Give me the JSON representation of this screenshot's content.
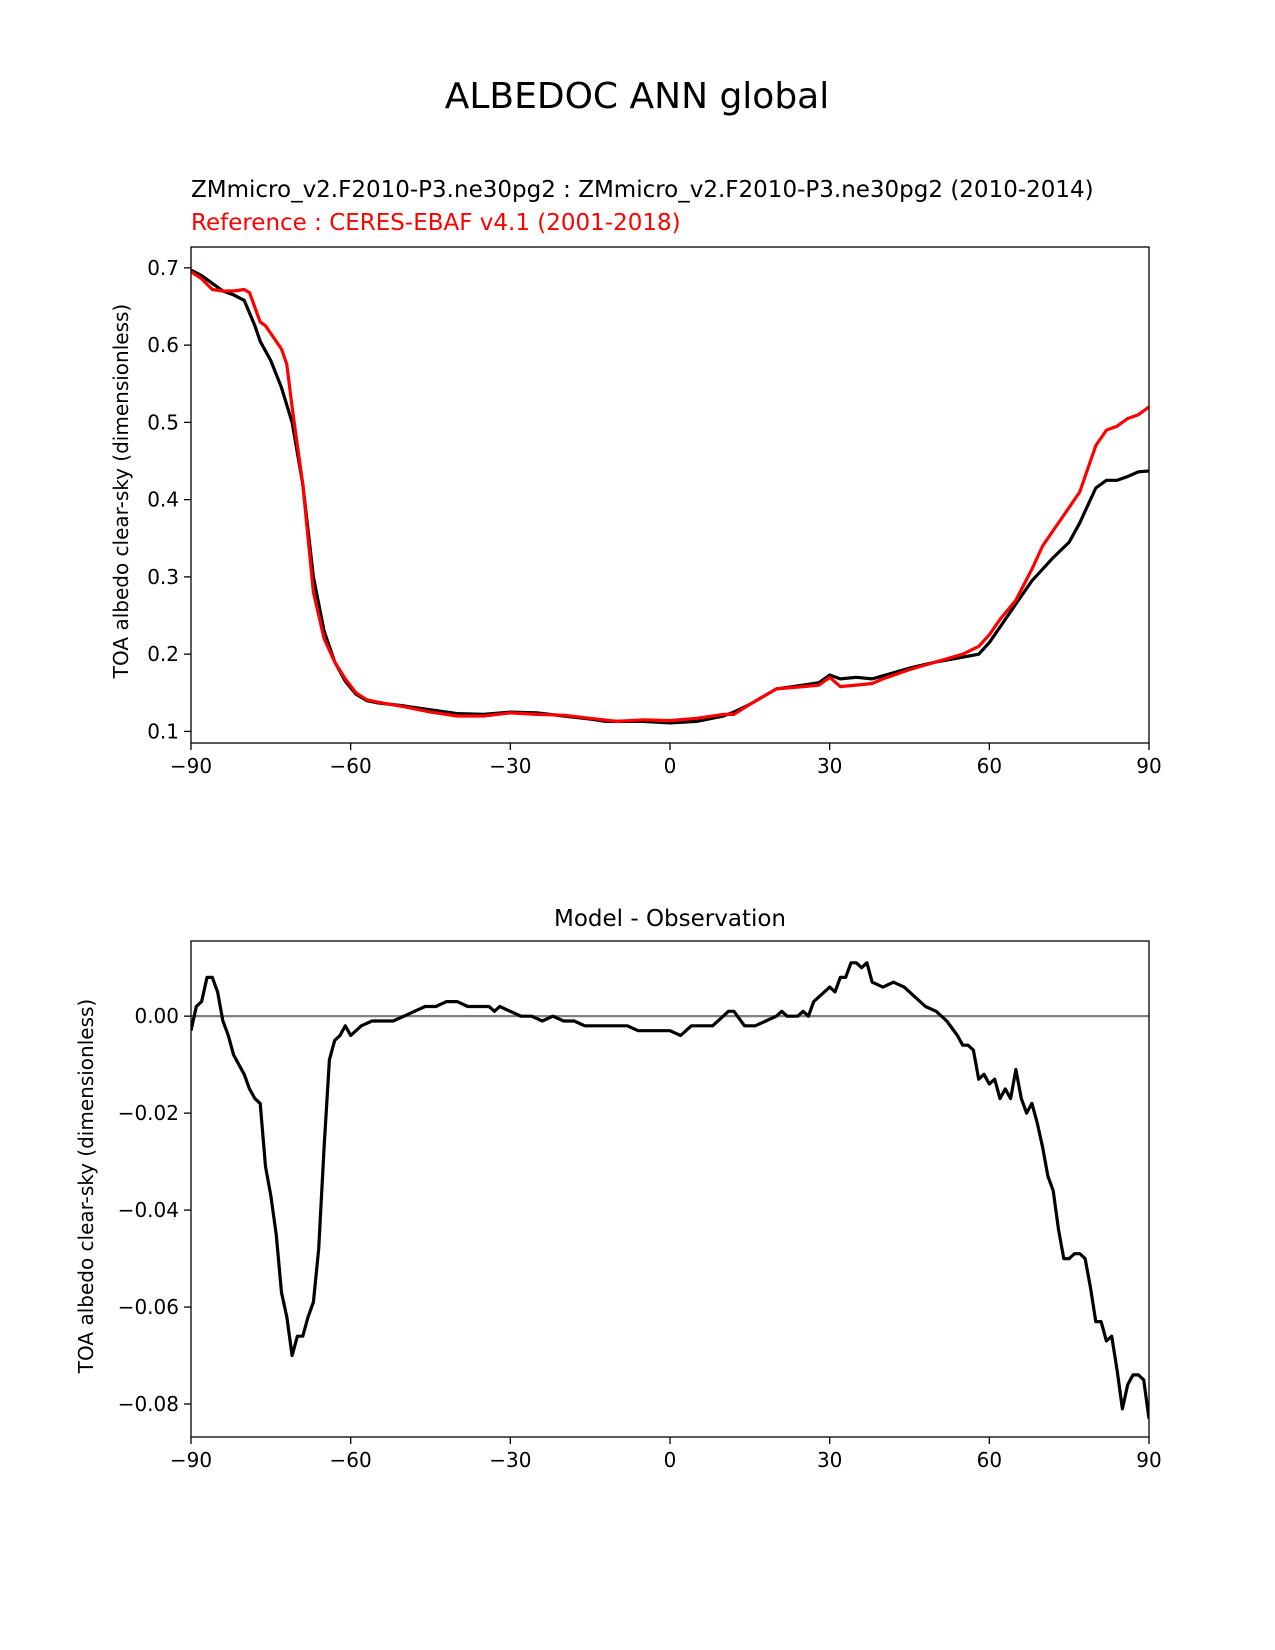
{
  "figure": {
    "title": "ALBEDOC ANN global"
  },
  "chart_data": [
    {
      "type": "line",
      "title": "ZMmicro_v2.F2010-P3.ne30pg2 : ZMmicro_v2.F2010-P3.ne30pg2 (2010-2014)",
      "subtitle": "Reference : CERES-EBAF v4.1 (2001-2018)",
      "subtitle_color": "#ff0000",
      "xlabel": "",
      "ylabel": "TOA albedo clear-sky (dimensionless)",
      "xlim": [
        -90,
        90
      ],
      "ylim": [
        0.085,
        0.727
      ],
      "xticks": [
        -90,
        -60,
        -30,
        0,
        30,
        60,
        90
      ],
      "xtick_labels": [
        "−90",
        "−60",
        "−30",
        "0",
        "30",
        "60",
        "90"
      ],
      "yticks": [
        0.1,
        0.2,
        0.3,
        0.4,
        0.5,
        0.6,
        0.7
      ],
      "ytick_labels": [
        "0.1",
        "0.2",
        "0.3",
        "0.4",
        "0.5",
        "0.6",
        "0.7"
      ],
      "grid": false,
      "series": [
        {
          "color": "#000000",
          "x": [
            -90,
            -88,
            -86,
            -84,
            -82,
            -80,
            -78,
            -77,
            -75,
            -73,
            -71,
            -69,
            -67,
            -65,
            -63,
            -61,
            -59,
            -57,
            -55,
            -50,
            -45,
            -40,
            -35,
            -30,
            -25,
            -20,
            -15,
            -12,
            -10,
            -5,
            0,
            5,
            10,
            12,
            15,
            20,
            25,
            28,
            30,
            32,
            35,
            38,
            40,
            45,
            50,
            55,
            58,
            60,
            62,
            65,
            68,
            70,
            72,
            75,
            77,
            78,
            80,
            82,
            84,
            86,
            88,
            90
          ],
          "y": [
            0.697,
            0.69,
            0.68,
            0.67,
            0.665,
            0.658,
            0.625,
            0.605,
            0.58,
            0.545,
            0.5,
            0.42,
            0.3,
            0.23,
            0.19,
            0.165,
            0.148,
            0.14,
            0.137,
            0.133,
            0.128,
            0.123,
            0.122,
            0.125,
            0.124,
            0.12,
            0.116,
            0.113,
            0.113,
            0.113,
            0.111,
            0.113,
            0.12,
            0.125,
            0.135,
            0.155,
            0.16,
            0.163,
            0.173,
            0.168,
            0.17,
            0.168,
            0.172,
            0.182,
            0.19,
            0.196,
            0.2,
            0.215,
            0.235,
            0.265,
            0.295,
            0.31,
            0.325,
            0.345,
            0.37,
            0.385,
            0.415,
            0.425,
            0.425,
            0.43,
            0.436,
            0.437
          ]
        },
        {
          "color": "#ff0000",
          "x": [
            -90,
            -88,
            -86,
            -84,
            -82,
            -80,
            -79,
            -77,
            -76,
            -75,
            -74,
            -73,
            -72,
            -71,
            -70,
            -69,
            -68,
            -67,
            -65,
            -63,
            -61,
            -59,
            -57,
            -55,
            -50,
            -45,
            -40,
            -35,
            -30,
            -25,
            -20,
            -15,
            -10,
            -5,
            0,
            5,
            10,
            12,
            15,
            20,
            25,
            28,
            30,
            32,
            35,
            38,
            40,
            45,
            50,
            55,
            58,
            60,
            62,
            65,
            68,
            70,
            72,
            75,
            77,
            78,
            80,
            82,
            84,
            86,
            88,
            90
          ],
          "y": [
            0.695,
            0.686,
            0.672,
            0.67,
            0.67,
            0.672,
            0.668,
            0.63,
            0.625,
            0.615,
            0.605,
            0.595,
            0.575,
            0.52,
            0.47,
            0.42,
            0.35,
            0.28,
            0.22,
            0.19,
            0.168,
            0.15,
            0.141,
            0.138,
            0.132,
            0.125,
            0.12,
            0.12,
            0.124,
            0.122,
            0.121,
            0.117,
            0.113,
            0.115,
            0.114,
            0.117,
            0.122,
            0.122,
            0.135,
            0.155,
            0.158,
            0.16,
            0.17,
            0.158,
            0.16,
            0.162,
            0.168,
            0.18,
            0.19,
            0.2,
            0.21,
            0.225,
            0.245,
            0.27,
            0.31,
            0.34,
            0.36,
            0.39,
            0.41,
            0.43,
            0.47,
            0.49,
            0.495,
            0.505,
            0.51,
            0.52
          ]
        }
      ]
    },
    {
      "type": "line",
      "title": "Model - Observation",
      "xlabel": "",
      "ylabel": "TOA albedo clear-sky (dimensionless)",
      "xlim": [
        -90,
        90
      ],
      "ylim": [
        -0.0868,
        0.0155
      ],
      "xticks": [
        -90,
        -60,
        -30,
        0,
        30,
        60,
        90
      ],
      "xtick_labels": [
        "−90",
        "−60",
        "−30",
        "0",
        "30",
        "60",
        "90"
      ],
      "yticks": [
        0.0,
        -0.02,
        -0.04,
        -0.06,
        -0.08
      ],
      "ytick_labels": [
        "0.00",
        "−0.02",
        "−0.04",
        "−0.06",
        "−0.08"
      ],
      "grid": false,
      "zero_line": {
        "y": 0,
        "color": "#808080"
      },
      "series": [
        {
          "color": "#000000",
          "x": [
            -90,
            -89,
            -88,
            -87,
            -86,
            -85,
            -84,
            -83,
            -82,
            -81,
            -80,
            -79,
            -78,
            -77,
            -76,
            -75,
            -74,
            -73,
            -72,
            -71,
            -70,
            -69,
            -68,
            -67,
            -66,
            -65,
            -64,
            -63,
            -62,
            -61,
            -60,
            -58,
            -56,
            -54,
            -52,
            -50,
            -48,
            -46,
            -44,
            -42,
            -40,
            -38,
            -36,
            -34,
            -33,
            -32,
            -30,
            -28,
            -26,
            -24,
            -22,
            -20,
            -18,
            -16,
            -14,
            -12,
            -10,
            -8,
            -6,
            -4,
            -2,
            0,
            2,
            4,
            6,
            8,
            10,
            11,
            12,
            14,
            16,
            18,
            20,
            21,
            22,
            24,
            25,
            26,
            27,
            28,
            30,
            31,
            32,
            33,
            34,
            35,
            36,
            37,
            38,
            40,
            42,
            44,
            46,
            48,
            50,
            52,
            54,
            55,
            56,
            57,
            58,
            59,
            60,
            61,
            62,
            63,
            64,
            65,
            66,
            67,
            68,
            69,
            70,
            71,
            72,
            73,
            74,
            75,
            76,
            77,
            78,
            79,
            80,
            81,
            82,
            83,
            84,
            85,
            86,
            87,
            88,
            89,
            90
          ],
          "y": [
            -0.003,
            0.002,
            0.003,
            0.008,
            0.008,
            0.005,
            -0.001,
            -0.004,
            -0.008,
            -0.01,
            -0.012,
            -0.015,
            -0.017,
            -0.018,
            -0.031,
            -0.037,
            -0.045,
            -0.057,
            -0.062,
            -0.07,
            -0.066,
            -0.066,
            -0.062,
            -0.059,
            -0.048,
            -0.027,
            -0.009,
            -0.005,
            -0.004,
            -0.002,
            -0.004,
            -0.002,
            -0.001,
            -0.001,
            -0.001,
            0.0,
            0.001,
            0.002,
            0.002,
            0.003,
            0.003,
            0.002,
            0.002,
            0.002,
            0.001,
            0.002,
            0.001,
            0.0,
            0.0,
            -0.001,
            0.0,
            -0.001,
            -0.001,
            -0.002,
            -0.002,
            -0.002,
            -0.002,
            -0.002,
            -0.003,
            -0.003,
            -0.003,
            -0.003,
            -0.004,
            -0.002,
            -0.002,
            -0.002,
            0.0,
            0.001,
            0.001,
            -0.002,
            -0.002,
            -0.001,
            0.0,
            0.001,
            0.0,
            0.0,
            0.001,
            0.0,
            0.003,
            0.004,
            0.006,
            0.005,
            0.008,
            0.008,
            0.011,
            0.011,
            0.01,
            0.011,
            0.007,
            0.006,
            0.007,
            0.006,
            0.004,
            0.002,
            0.001,
            -0.001,
            -0.004,
            -0.006,
            -0.006,
            -0.007,
            -0.013,
            -0.012,
            -0.014,
            -0.013,
            -0.017,
            -0.015,
            -0.017,
            -0.011,
            -0.017,
            -0.02,
            -0.018,
            -0.022,
            -0.027,
            -0.033,
            -0.036,
            -0.044,
            -0.05,
            -0.05,
            -0.049,
            -0.049,
            -0.05,
            -0.056,
            -0.063,
            -0.063,
            -0.067,
            -0.066,
            -0.073,
            -0.081,
            -0.076,
            -0.074,
            -0.074,
            -0.075,
            -0.083
          ]
        }
      ]
    }
  ]
}
